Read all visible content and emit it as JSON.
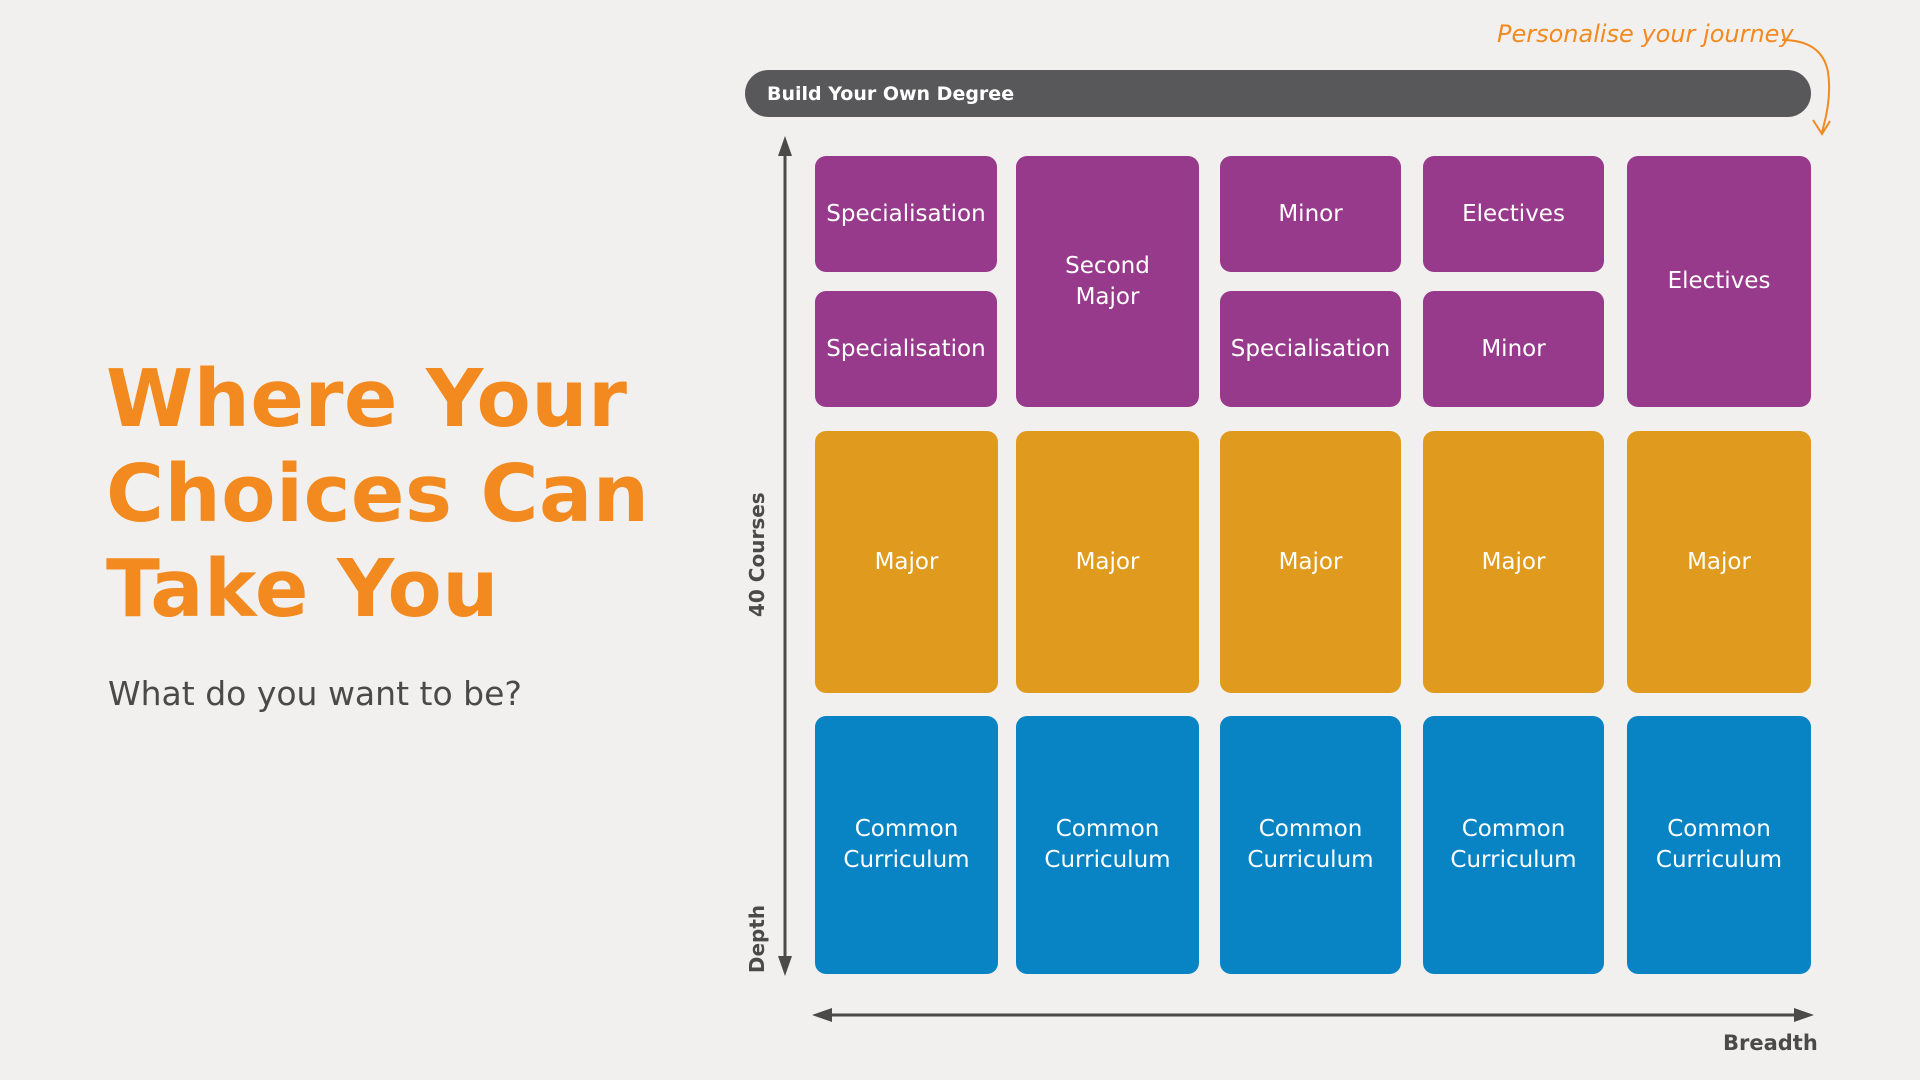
{
  "headline": [
    "Where Your",
    "Choices Can",
    "Take You"
  ],
  "subtitle": "What do you want to be?",
  "diagram": {
    "bar_label": "Build Your Own Degree",
    "callout": "Personalise your journey",
    "axis_vertical_top": "40 Courses",
    "axis_vertical_bottom": "Depth",
    "axis_horizontal": "Breadth",
    "colors": {
      "purple": "#983a8b",
      "gold": "#e09b1e",
      "blue": "#0884c5",
      "accent": "#f28a1f",
      "bar": "#58585a"
    },
    "columns": [
      {
        "upper": [
          "Specialisation",
          "Specialisation"
        ],
        "middle": "Major",
        "lower": "Common\nCurriculum"
      },
      {
        "upper": [
          "Second\nMajor"
        ],
        "middle": "Major",
        "lower": "Common\nCurriculum"
      },
      {
        "upper": [
          "Minor",
          "Specialisation"
        ],
        "middle": "Major",
        "lower": "Common\nCurriculum"
      },
      {
        "upper": [
          "Electives",
          "Minor"
        ],
        "middle": "Major",
        "lower": "Common\nCurriculum"
      },
      {
        "upper": [
          "Electives"
        ],
        "middle": "Major",
        "lower": "Common\nCurriculum"
      }
    ]
  }
}
